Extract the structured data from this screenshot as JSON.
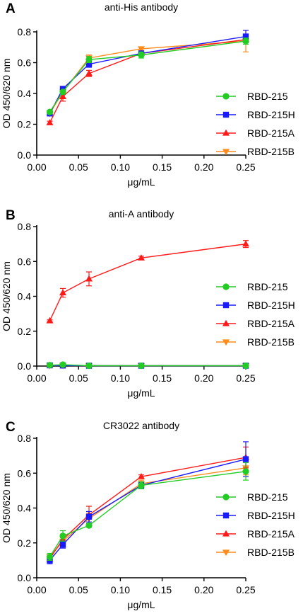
{
  "colors": {
    "RBD-215": "#22cc22",
    "RBD-215H": "#1a1aff",
    "RBD-215A": "#ff1a1a",
    "RBD-215B": "#ff8c1a",
    "axis": "#000000"
  },
  "markers": {
    "RBD-215": "circle",
    "RBD-215H": "square",
    "RBD-215A": "triangle-up",
    "RBD-215B": "triangle-down"
  },
  "chart_data": [
    {
      "panel": "A",
      "type": "line",
      "title": "anti-His antibody",
      "xlabel": "μg/mL",
      "ylabel": "OD 450/620 nm",
      "xlim": [
        0,
        0.25
      ],
      "ylim": [
        0,
        0.8
      ],
      "xticks": [
        "0.00",
        "0.05",
        "0.10",
        "0.15",
        "0.20",
        "0.25"
      ],
      "yticks": [
        "0.0",
        "0.2",
        "0.4",
        "0.6",
        "0.8"
      ],
      "x": [
        0.015625,
        0.03125,
        0.0625,
        0.125,
        0.25
      ],
      "legend_position": "right",
      "series": [
        {
          "name": "RBD-215",
          "values": [
            0.28,
            0.41,
            0.62,
            0.65,
            0.74
          ],
          "errors": [
            0.01,
            0.01,
            0.02,
            0.02,
            0.02
          ]
        },
        {
          "name": "RBD-215H",
          "values": [
            0.27,
            0.43,
            0.59,
            0.66,
            0.77
          ],
          "errors": [
            0.01,
            0.01,
            0.02,
            0.01,
            0.04
          ]
        },
        {
          "name": "RBD-215A",
          "values": [
            0.21,
            0.38,
            0.53,
            0.66,
            0.75
          ],
          "errors": [
            0.01,
            0.03,
            0.02,
            0.01,
            0.02
          ]
        },
        {
          "name": "RBD-215B",
          "values": [
            0.27,
            0.41,
            0.63,
            0.69,
            0.74
          ],
          "errors": [
            0.01,
            0.01,
            0.02,
            0.01,
            0.07
          ]
        }
      ]
    },
    {
      "panel": "B",
      "type": "line",
      "title": "anti-A antibody",
      "xlabel": "μg/mL",
      "ylabel": "OD 450/620 nm",
      "xlim": [
        0,
        0.25
      ],
      "ylim": [
        0,
        0.8
      ],
      "xticks": [
        "0.00",
        "0.05",
        "0.10",
        "0.15",
        "0.20",
        "0.25"
      ],
      "yticks": [
        "0.0",
        "0.2",
        "0.4",
        "0.6",
        "0.8"
      ],
      "x": [
        0.015625,
        0.03125,
        0.0625,
        0.125,
        0.25
      ],
      "legend_position": "right",
      "series": [
        {
          "name": "RBD-215",
          "values": [
            0.005,
            0.008,
            0.002,
            0.002,
            0.002
          ],
          "errors": [
            0.002,
            0.003,
            0.001,
            0.001,
            0.001
          ]
        },
        {
          "name": "RBD-215H",
          "values": [
            0.004,
            0.003,
            0.002,
            0.002,
            0.002
          ],
          "errors": [
            0.001,
            0.001,
            0.001,
            0.001,
            0.001
          ]
        },
        {
          "name": "RBD-215A",
          "values": [
            0.26,
            0.42,
            0.5,
            0.62,
            0.7
          ],
          "errors": [
            0.005,
            0.025,
            0.04,
            0.01,
            0.02
          ]
        },
        {
          "name": "RBD-215B",
          "values": [
            0.003,
            0.003,
            0.002,
            0.002,
            0.002
          ],
          "errors": [
            0.001,
            0.001,
            0.001,
            0.001,
            0.001
          ]
        }
      ]
    },
    {
      "panel": "C",
      "type": "line",
      "title": "CR3022 antibody",
      "xlabel": "μg/mL",
      "ylabel": "OD 450/620 nm",
      "xlim": [
        0,
        0.25
      ],
      "ylim": [
        0,
        0.8
      ],
      "xticks": [
        "0.00",
        "0.05",
        "0.10",
        "0.15",
        "0.20",
        "0.25"
      ],
      "yticks": [
        "0.0",
        "0.2",
        "0.4",
        "0.6",
        "0.8"
      ],
      "x": [
        0.015625,
        0.03125,
        0.0625,
        0.125,
        0.25
      ],
      "legend_position": "right",
      "series": [
        {
          "name": "RBD-215",
          "values": [
            0.12,
            0.24,
            0.3,
            0.53,
            0.61
          ],
          "errors": [
            0.02,
            0.03,
            0.01,
            0.02,
            0.05
          ]
        },
        {
          "name": "RBD-215H",
          "values": [
            0.1,
            0.19,
            0.35,
            0.53,
            0.68
          ],
          "errors": [
            0.02,
            0.02,
            0.03,
            0.02,
            0.1
          ]
        },
        {
          "name": "RBD-215A",
          "values": [
            0.11,
            0.22,
            0.36,
            0.58,
            0.69
          ],
          "errors": [
            0.02,
            0.03,
            0.05,
            0.01,
            0.06
          ]
        },
        {
          "name": "RBD-215B",
          "values": [
            0.12,
            0.21,
            0.34,
            0.54,
            0.63
          ],
          "errors": [
            0.02,
            0.02,
            0.03,
            0.02,
            0.04
          ]
        }
      ]
    }
  ]
}
